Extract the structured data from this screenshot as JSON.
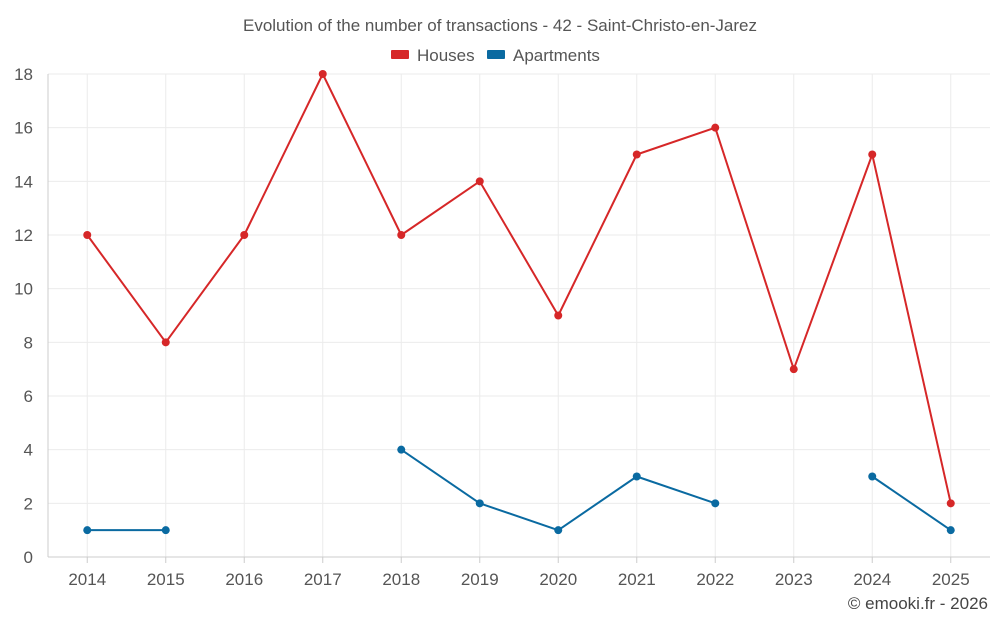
{
  "chart_data": {
    "type": "line",
    "title": "Evolution of the number of transactions - 42 - Saint-Christo-en-Jarez",
    "categories": [
      "2014",
      "2015",
      "2016",
      "2017",
      "2018",
      "2019",
      "2020",
      "2021",
      "2022",
      "2023",
      "2024",
      "2025"
    ],
    "series": [
      {
        "name": "Houses",
        "color": "#d62728",
        "values": [
          12,
          8,
          12,
          18,
          12,
          14,
          9,
          15,
          16,
          7,
          15,
          2
        ]
      },
      {
        "name": "Apartments",
        "color": "#0a6aa1",
        "values": [
          1,
          1,
          null,
          null,
          4,
          2,
          1,
          3,
          2,
          null,
          3,
          1
        ]
      }
    ],
    "yticks": [
      "0",
      "2",
      "4",
      "6",
      "8",
      "10",
      "12",
      "14",
      "16",
      "18"
    ],
    "ylim": [
      0,
      18
    ],
    "xlabel": "",
    "ylabel": "",
    "legend_position": "top-center",
    "grid": true
  },
  "footer": {
    "credit": "© emooki.fr - 2026"
  }
}
